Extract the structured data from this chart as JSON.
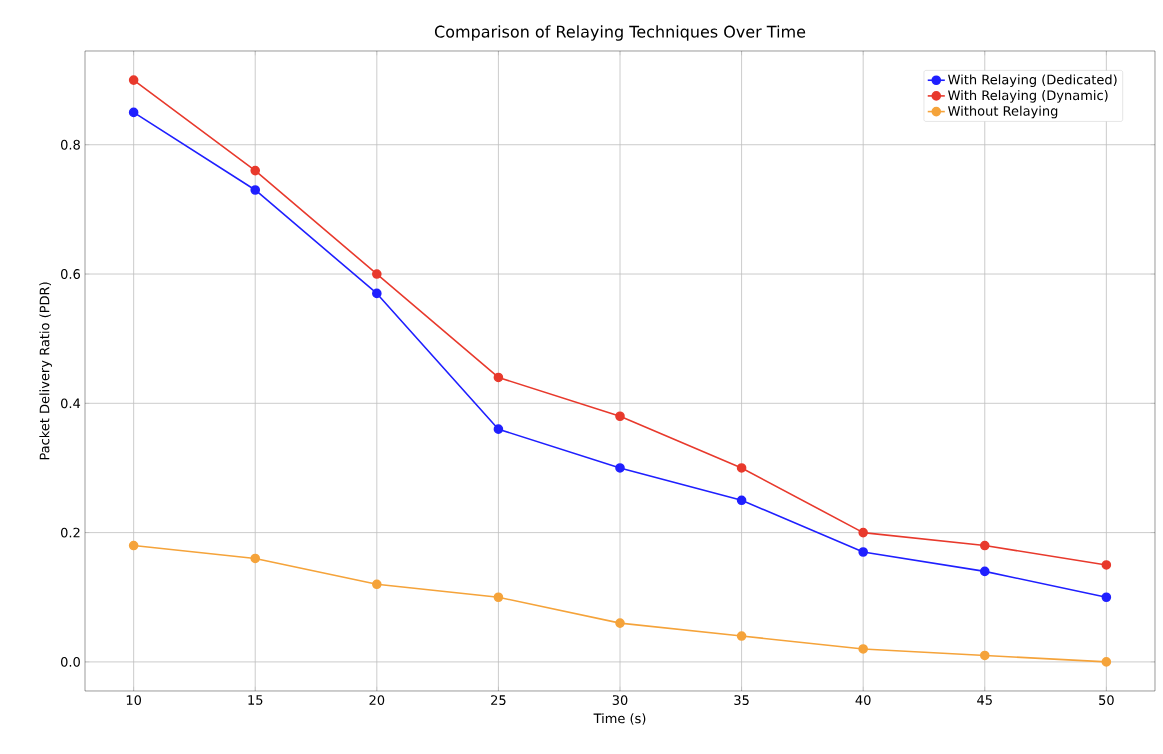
{
  "chart_data": {
    "type": "line",
    "title": "Comparison of Relaying Techniques Over Time",
    "xlabel": "Time (s)",
    "ylabel": "Packet Delivery Ratio (PDR)",
    "x": [
      10,
      15,
      20,
      25,
      30,
      35,
      40,
      45,
      50
    ],
    "series": [
      {
        "name": "With Relaying (Dedicated)",
        "color": "#1f1fff",
        "values": [
          0.85,
          0.73,
          0.57,
          0.36,
          0.3,
          0.25,
          0.17,
          0.14,
          0.1
        ]
      },
      {
        "name": "With Relaying (Dynamic)",
        "color": "#e8392c",
        "values": [
          0.9,
          0.76,
          0.6,
          0.44,
          0.38,
          0.3,
          0.2,
          0.18,
          0.15
        ]
      },
      {
        "name": "Without Relaying",
        "color": "#f5a33a",
        "values": [
          0.18,
          0.16,
          0.12,
          0.1,
          0.06,
          0.04,
          0.02,
          0.01,
          0.0
        ]
      }
    ],
    "xlim": [
      8,
      52
    ],
    "ylim": [
      -0.045,
      0.945
    ],
    "xticks": [
      10,
      15,
      20,
      25,
      30,
      35,
      40,
      45,
      50
    ],
    "yticks": [
      {
        "value": 0,
        "label": "0.0"
      },
      {
        "value": 0.2,
        "label": "0.2"
      },
      {
        "value": 0.4,
        "label": "0.4"
      },
      {
        "value": 0.6,
        "label": "0.6"
      },
      {
        "value": 0.8,
        "label": "0.8"
      }
    ],
    "grid": true,
    "legend": "top right",
    "marker": "circle",
    "line_style": "solid"
  }
}
